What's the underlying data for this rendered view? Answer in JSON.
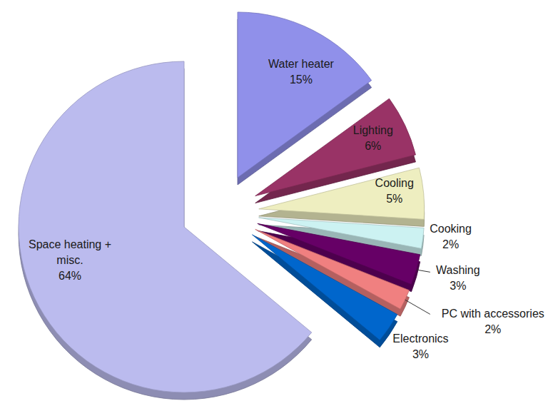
{
  "chart_data": {
    "type": "pie",
    "categories": [
      "Water heater",
      "Lighting",
      "Cooling",
      "Cooking",
      "Washing",
      "PC with accessories",
      "Electronics",
      "Space heating +\nmisc."
    ],
    "values": [
      15,
      6,
      5,
      2,
      3,
      2,
      3,
      64
    ],
    "value_labels": [
      "15%",
      "6%",
      "5%",
      "2%",
      "3%",
      "2%",
      "3%",
      "64%"
    ],
    "colors": [
      "#9090ea",
      "#993366",
      "#eeeec0",
      "#ccf2f2",
      "#660066",
      "#f08080",
      "#0066cc",
      "#bbbbee"
    ],
    "data_labels": true
  }
}
